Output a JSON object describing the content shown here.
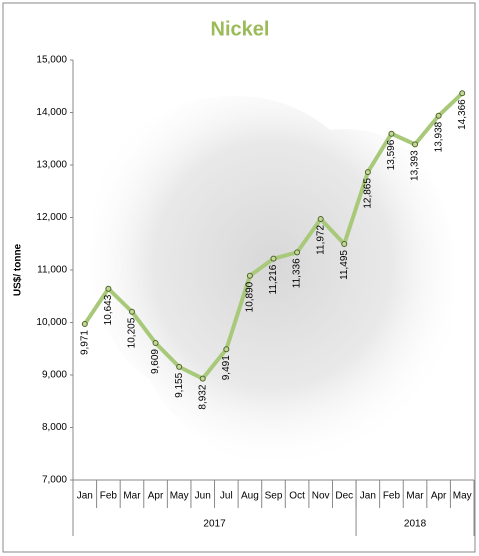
{
  "chart_data": {
    "type": "line",
    "title": "Nickel",
    "y_label": "US$/ tonne",
    "categories": [
      "Jan",
      "Feb",
      "Mar",
      "Apr",
      "May",
      "Jun",
      "Jul",
      "Aug",
      "Sep",
      "Oct",
      "Nov",
      "Dec",
      "Jan",
      "Feb",
      "Mar",
      "Apr",
      "May"
    ],
    "category_groups": [
      "2017",
      "2017",
      "2017",
      "2017",
      "2017",
      "2017",
      "2017",
      "2017",
      "2017",
      "2017",
      "2017",
      "2017",
      "2018",
      "2018",
      "2018",
      "2018",
      "2018"
    ],
    "series": [
      {
        "name": "Nickel",
        "color": "#a9c97a",
        "values": [
          9971,
          10643,
          10205,
          9609,
          9155,
          8932,
          9491,
          10890,
          11216,
          11336,
          11972,
          11495,
          12865,
          13596,
          13393,
          13938,
          14366
        ],
        "value_labels": [
          "9,971",
          "10,643",
          "10,205",
          "9,609",
          "9,155",
          "8,932",
          "9,491",
          "10,890",
          "11,216",
          "11,336",
          "11,972",
          "11,495",
          "12,865",
          "13,596",
          "13,393",
          "13,938",
          "14,366"
        ]
      }
    ],
    "ylim": [
      7000,
      15000
    ],
    "yticks": [
      {
        "value": 7000,
        "label": "7,000"
      },
      {
        "value": 8000,
        "label": "8,000"
      },
      {
        "value": 9000,
        "label": "9,000"
      },
      {
        "value": 10000,
        "label": "10,000"
      },
      {
        "value": 11000,
        "label": "11,000"
      },
      {
        "value": 12000,
        "label": "12,000"
      },
      {
        "value": 13000,
        "label": "13,000"
      },
      {
        "value": 14000,
        "label": "14,000"
      },
      {
        "value": 15000,
        "label": "15,000"
      }
    ],
    "grid": false
  }
}
